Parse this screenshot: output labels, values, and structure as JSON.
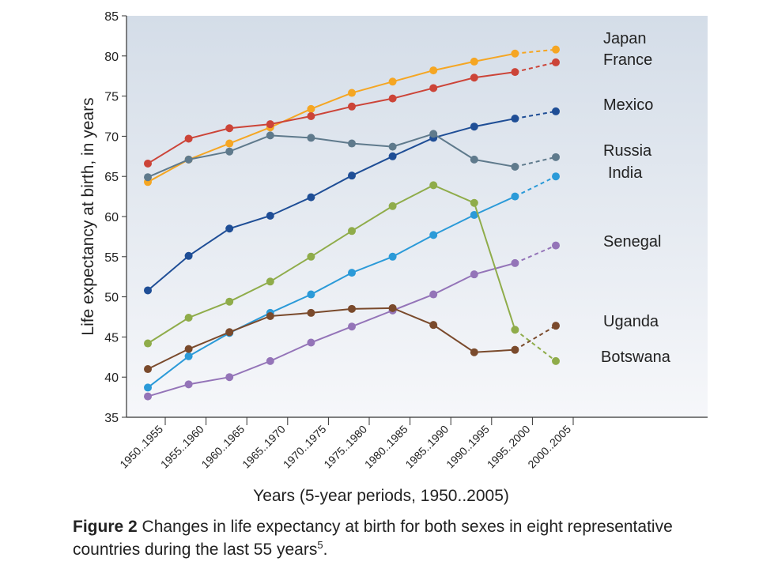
{
  "chart_data": {
    "type": "line",
    "xlabel": "Years (5-year periods, 1950..2005)",
    "ylabel": "Life expectancy at birth, in years",
    "ylim": [
      35,
      85
    ],
    "yticks": [
      35,
      40,
      45,
      50,
      55,
      60,
      65,
      70,
      75,
      80,
      85
    ],
    "grid": false,
    "categories": [
      "1950..1955",
      "1955..1960",
      "1960..1965",
      "1965..1970",
      "1970..1975",
      "1975..1980",
      "1980..1985",
      "1985..1990",
      "1990..1995",
      "1995..2000",
      "2000..2005"
    ],
    "dashed_last_segment": true,
    "series": [
      {
        "name": "Japan",
        "color": "#f5a623",
        "values": [
          64.3,
          67.1,
          69.1,
          71.1,
          73.4,
          75.4,
          76.8,
          78.2,
          79.3,
          80.3,
          80.8
        ]
      },
      {
        "name": "France",
        "color": "#cc4438",
        "values": [
          66.6,
          69.7,
          71.0,
          71.5,
          72.5,
          73.7,
          74.7,
          76.0,
          77.3,
          78.0,
          79.2
        ]
      },
      {
        "name": "Mexico",
        "color": "#1f4e96",
        "values": [
          50.8,
          55.1,
          58.5,
          60.1,
          62.4,
          65.1,
          67.5,
          69.8,
          71.2,
          72.2,
          73.1
        ]
      },
      {
        "name": "Russia",
        "color": "#5f7a8c",
        "values": [
          64.9,
          67.1,
          68.1,
          70.1,
          69.8,
          69.1,
          68.7,
          70.3,
          67.1,
          66.2,
          67.4
        ]
      },
      {
        "name": "India",
        "color": "#2b9ad8",
        "values": [
          38.7,
          42.6,
          45.5,
          48.0,
          50.3,
          53.0,
          55.0,
          57.7,
          60.2,
          62.5,
          65.0
        ]
      },
      {
        "name": "Senegal",
        "color": "#9474b8",
        "values": [
          37.6,
          39.1,
          40.0,
          42.0,
          44.3,
          46.3,
          48.3,
          50.3,
          52.8,
          54.2,
          56.4
        ]
      },
      {
        "name": "Uganda",
        "color": "#7a4a2c",
        "values": [
          41.0,
          43.5,
          45.6,
          47.6,
          48.0,
          48.5,
          48.6,
          46.5,
          43.1,
          43.4,
          46.4
        ]
      },
      {
        "name": "Botswana",
        "color": "#8fac4a",
        "values": [
          44.2,
          47.4,
          49.4,
          51.9,
          55.0,
          58.2,
          61.3,
          63.9,
          61.7,
          45.9,
          42.0
        ]
      }
    ]
  },
  "caption": {
    "label": "Figure 2",
    "text": "Changes in life expectancy at birth for both sexes in eight representative countries during the last 55 years",
    "ref": "5",
    "end": "."
  }
}
